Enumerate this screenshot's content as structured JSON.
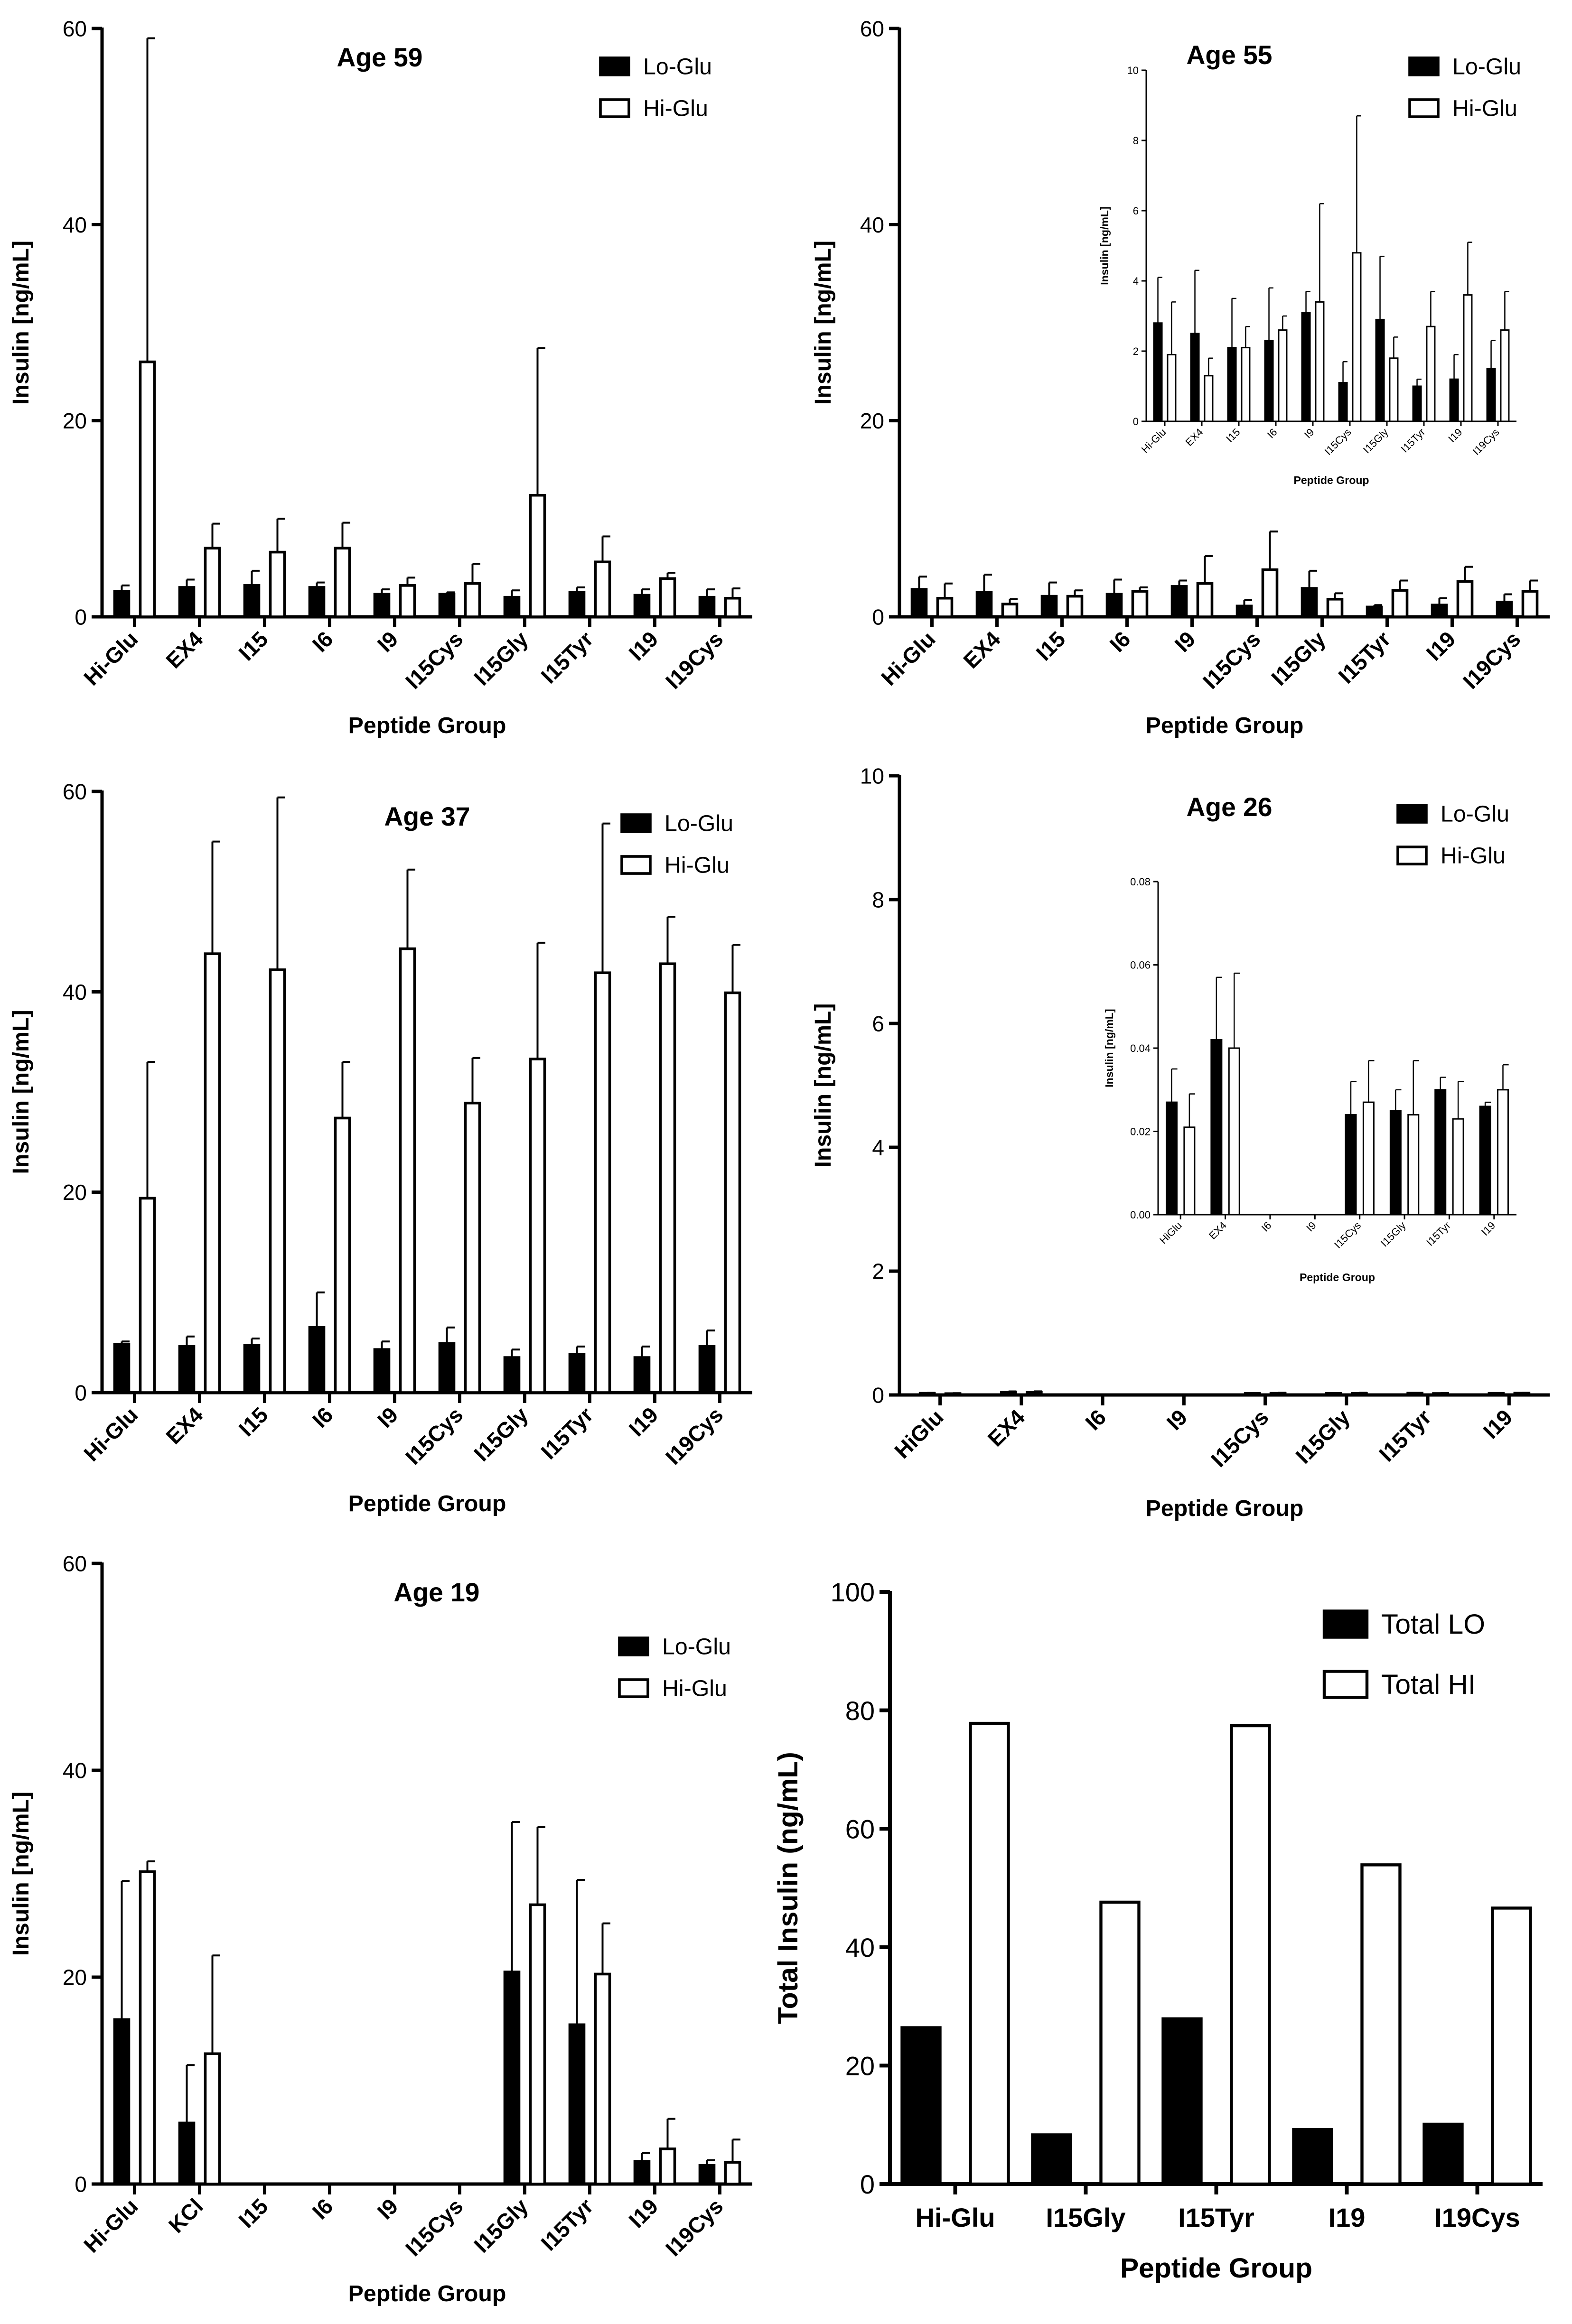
{
  "chart_data": [
    {
      "type": "bar",
      "title": "Age 59",
      "xlabel": "Peptide Group",
      "ylabel": "Insulin [ng/mL]",
      "ylim": [
        0,
        60
      ],
      "yticks": [
        "0",
        "20",
        "40",
        "60"
      ],
      "legend": "top-right",
      "categories": [
        "Hi-Glu",
        "EX4",
        "I15",
        "I6",
        "I9",
        "I15Cys",
        "I15Gly",
        "I15Tyr",
        "I19",
        "I19Cys"
      ],
      "series": [
        {
          "name": "Lo-Glu",
          "color": "#000000",
          "values": [
            2.6,
            3.0,
            3.2,
            3.0,
            2.3,
            2.3,
            2.0,
            2.5,
            2.2,
            2.0
          ],
          "errors": [
            0.6,
            0.8,
            1.5,
            0.5,
            0.5,
            0.2,
            0.7,
            0.5,
            0.6,
            0.8
          ]
        },
        {
          "name": "Hi-Glu",
          "color": "#ffffff",
          "values": [
            26.0,
            7.0,
            6.6,
            7.0,
            3.2,
            3.4,
            12.4,
            5.6,
            3.9,
            1.9
          ],
          "errors": [
            33.0,
            2.5,
            3.4,
            2.6,
            0.8,
            2.0,
            15.0,
            2.6,
            0.6,
            1.0
          ]
        }
      ]
    },
    {
      "type": "bar",
      "title": "Age 55",
      "xlabel": "Peptide Group",
      "ylabel": "Insulin [ng/mL]",
      "ylim": [
        0,
        60
      ],
      "yticks": [
        "0",
        "20",
        "40",
        "60"
      ],
      "legend": "top-right",
      "categories": [
        "Hi-Glu",
        "EX4",
        "I15",
        "I6",
        "I9",
        "I15Cys",
        "I15Gly",
        "I15Tyr",
        "I19",
        "I19Cys"
      ],
      "series": [
        {
          "name": "Lo-Glu",
          "color": "#000000",
          "values": [
            2.8,
            2.5,
            2.1,
            2.3,
            3.1,
            1.1,
            2.9,
            1.0,
            1.2,
            1.5
          ],
          "errors": [
            1.3,
            1.8,
            1.4,
            1.5,
            0.6,
            0.6,
            1.8,
            0.2,
            0.7,
            0.8
          ]
        },
        {
          "name": "Hi-Glu",
          "color": "#ffffff",
          "values": [
            1.9,
            1.3,
            2.1,
            2.6,
            3.4,
            4.8,
            1.8,
            2.7,
            3.6,
            2.6
          ],
          "errors": [
            1.5,
            0.5,
            0.6,
            0.4,
            2.8,
            3.9,
            0.6,
            1.0,
            1.5,
            1.1
          ]
        }
      ],
      "inset": {
        "xlabel": "Peptide Group",
        "ylabel": "Insulin [ng/mL]",
        "ylim": [
          0,
          10
        ],
        "yticks": [
          "0",
          "2",
          "4",
          "6",
          "8",
          "10"
        ],
        "categories": [
          "Hi-Glu",
          "EX4",
          "I15",
          "I6",
          "I9",
          "I15Cys",
          "I15Gly",
          "I15Tyr",
          "I19",
          "I19Cys"
        ]
      }
    },
    {
      "type": "bar",
      "title": "Age 37",
      "xlabel": "Peptide Group",
      "ylabel": "Insulin [ng/mL]",
      "ylim": [
        0,
        60
      ],
      "yticks": [
        "0",
        "20",
        "40",
        "60"
      ],
      "legend": "top-right",
      "categories": [
        "Hi-Glu",
        "EX4",
        "I15",
        "I6",
        "I9",
        "I15Cys",
        "I15Gly",
        "I15Tyr",
        "I19",
        "I19Cys"
      ],
      "series": [
        {
          "name": "Lo-Glu",
          "color": "#000000",
          "values": [
            4.8,
            4.6,
            4.7,
            6.5,
            4.3,
            4.9,
            3.5,
            3.8,
            3.5,
            4.6
          ],
          "errors": [
            0.3,
            1.0,
            0.7,
            3.5,
            0.8,
            1.6,
            0.8,
            0.8,
            1.1,
            1.6
          ]
        },
        {
          "name": "Hi-Glu",
          "color": "#ffffff",
          "values": [
            19.4,
            43.8,
            42.2,
            27.4,
            44.3,
            28.9,
            33.3,
            41.9,
            42.8,
            39.9
          ],
          "errors": [
            13.6,
            11.2,
            17.2,
            5.6,
            7.9,
            4.5,
            11.6,
            14.9,
            4.7,
            4.8
          ]
        }
      ]
    },
    {
      "type": "bar",
      "title": "Age 26",
      "xlabel": "Peptide Group",
      "ylabel": "Insulin [ng/mL]",
      "ylim": [
        0,
        10
      ],
      "yticks": [
        "0",
        "2",
        "4",
        "6",
        "8",
        "10"
      ],
      "legend": "top-right",
      "categories": [
        "HiGlu",
        "EX4",
        "I6",
        "I9",
        "I15Cys",
        "I15Gly",
        "I15Tyr",
        "I19"
      ],
      "series": [
        {
          "name": "Lo-Glu",
          "color": "#000000",
          "values": [
            0.027,
            0.042,
            0,
            0,
            0.024,
            0.025,
            0.03,
            0.026
          ],
          "errors": [
            0.008,
            0.015,
            0,
            0,
            0.008,
            0.005,
            0.003,
            0.001
          ]
        },
        {
          "name": "Hi-Glu",
          "color": "#ffffff",
          "values": [
            0.021,
            0.04,
            0,
            0,
            0.027,
            0.024,
            0.023,
            0.03
          ],
          "errors": [
            0.008,
            0.018,
            0,
            0,
            0.01,
            0.013,
            0.009,
            0.006
          ]
        }
      ],
      "inset": {
        "xlabel": "Peptide Group",
        "ylabel": "Insulin [ng/mL]",
        "ylim": [
          0,
          0.08
        ],
        "yticks": [
          "0.00",
          "0.02",
          "0.04",
          "0.06",
          "0.08"
        ],
        "categories": [
          "HiGlu",
          "EX4",
          "I6",
          "I9",
          "I15Cys",
          "I15Gly",
          "I15Tyr",
          "I19"
        ]
      }
    },
    {
      "type": "bar",
      "title": "Age 19",
      "xlabel": "Peptide Group",
      "ylabel": "Insulin [ng/mL]",
      "ylim": [
        0,
        60
      ],
      "yticks": [
        "0",
        "20",
        "40",
        "60"
      ],
      "legend": "top-right",
      "categories": [
        "Hi-Glu",
        "KCl",
        "I15",
        "I6",
        "I9",
        "I15Cys",
        "I15Gly",
        "I15Tyr",
        "I19",
        "I19Cys"
      ],
      "series": [
        {
          "name": "Lo-Glu",
          "color": "#000000",
          "values": [
            15.9,
            5.9,
            0,
            0,
            0,
            0,
            20.5,
            15.4,
            2.2,
            1.8
          ],
          "errors": [
            13.4,
            5.6,
            0,
            0,
            0,
            0,
            14.5,
            14.0,
            0.8,
            0.5
          ]
        },
        {
          "name": "Hi-Glu",
          "color": "#ffffff",
          "values": [
            30.2,
            12.6,
            0,
            0,
            0,
            0,
            27.0,
            20.3,
            3.4,
            2.1
          ],
          "errors": [
            1.0,
            9.5,
            0,
            0,
            0,
            0,
            7.5,
            4.9,
            2.9,
            2.2
          ]
        }
      ]
    },
    {
      "type": "bar",
      "title": "",
      "xlabel": "Peptide Group",
      "ylabel": "Total Insulin (ng/mL)",
      "ylim": [
        0,
        100
      ],
      "yticks": [
        "0",
        "20",
        "40",
        "60",
        "80",
        "100"
      ],
      "legend": "top-right",
      "categories": [
        "Hi-Glu",
        "I15Gly",
        "I15Tyr",
        "I19",
        "I19Cys"
      ],
      "series": [
        {
          "name": "Total LO",
          "color": "#000000",
          "values": [
            26.4,
            8.3,
            27.9,
            9.2,
            10.1
          ],
          "errors": [
            0,
            0,
            0,
            0,
            0
          ]
        },
        {
          "name": "Total HI",
          "color": "#ffffff",
          "values": [
            77.8,
            47.6,
            77.4,
            53.9,
            46.6
          ],
          "errors": [
            0,
            0,
            0,
            0,
            0
          ]
        }
      ]
    }
  ]
}
